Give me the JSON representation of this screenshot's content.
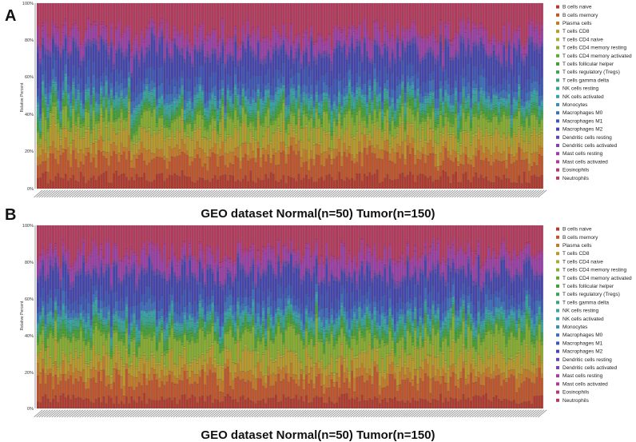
{
  "chart_data": [
    {
      "type": "bar",
      "panel_label": "A",
      "caption": "GEO dataset  Normal(n=50) Tumor(n=150)",
      "ylabel": "Relative Percent",
      "y_ticks": [
        "0%",
        "20%",
        "40%",
        "60%",
        "80%",
        "100%"
      ],
      "ylim": [
        0,
        100
      ],
      "stacked": true,
      "n_samples": 200,
      "legend_placement": "right",
      "legend": [
        "B cells naive",
        "B cells memory",
        "Plasma cells",
        "T cells CD8",
        "T cells CD4 naive",
        "T cells CD4 memory resting",
        "T cells CD4 memory activated",
        "T cells follicular helper",
        "T cells regulatory (Tregs)",
        "T cells gamma delta",
        "NK cells resting",
        "NK cells activated",
        "Monocytes",
        "Macrophages M0",
        "Macrophages M1",
        "Macrophages M2",
        "Dendritic cells resting",
        "Dendritic cells activated",
        "Mast cells resting",
        "Mast cells activated",
        "Eosinophils",
        "Neutrophils"
      ],
      "colors": [
        "#b03a2e",
        "#c0552b",
        "#c47a27",
        "#b89a2a",
        "#a7ac33",
        "#86ad2f",
        "#62a830",
        "#42a035",
        "#3aa257",
        "#36a47a",
        "#34a595",
        "#34a3ad",
        "#3a8fb8",
        "#3b6fba",
        "#3d56b4",
        "#4546ad",
        "#6048ad",
        "#7d44ab",
        "#9a3fa6",
        "#ab3a94",
        "#b2367a",
        "#b43a5e"
      ],
      "mean_percent": [
        6,
        10,
        5,
        8,
        1,
        7,
        1.5,
        3,
        1.5,
        1,
        3,
        2,
        1,
        4,
        6,
        12,
        2,
        1,
        6,
        2,
        1,
        15.5
      ]
    },
    {
      "type": "bar",
      "panel_label": "B",
      "caption": "GEO dataset  Normal(n=50) Tumor(n=150)",
      "ylabel": "Relative Percent",
      "y_ticks": [
        "0%",
        "20%",
        "40%",
        "60%",
        "80%",
        "100%"
      ],
      "ylim": [
        0,
        100
      ],
      "stacked": true,
      "n_samples": 200,
      "legend_placement": "right",
      "legend": [
        "B cells naive",
        "B cells memory",
        "Plasma cells",
        "T cells CD8",
        "T cells CD4 naive",
        "T cells CD4 memory resting",
        "T cells CD4 memory activated",
        "T cells follicular helper",
        "T cells regulatory (Tregs)",
        "T cells gamma delta",
        "NK cells resting",
        "NK cells activated",
        "Monocytes",
        "Macrophages M0",
        "Macrophages M1",
        "Macrophages M2",
        "Dendritic cells resting",
        "Dendritic cells activated",
        "Mast cells resting",
        "Mast cells activated",
        "Eosinophils",
        "Neutrophils"
      ],
      "colors": [
        "#b03a2e",
        "#c0552b",
        "#c47a27",
        "#b89a2a",
        "#a7ac33",
        "#86ad2f",
        "#62a830",
        "#42a035",
        "#3aa257",
        "#36a47a",
        "#34a595",
        "#34a3ad",
        "#3a8fb8",
        "#3b6fba",
        "#3d56b4",
        "#4546ad",
        "#6048ad",
        "#7d44ab",
        "#9a3fa6",
        "#ab3a94",
        "#b2367a",
        "#b43a5e"
      ],
      "mean_percent": [
        5,
        10,
        5,
        8,
        1,
        9,
        1.5,
        3,
        1.5,
        1,
        3,
        2,
        1,
        4,
        6,
        11,
        2,
        1,
        7,
        2,
        1,
        14
      ]
    }
  ]
}
